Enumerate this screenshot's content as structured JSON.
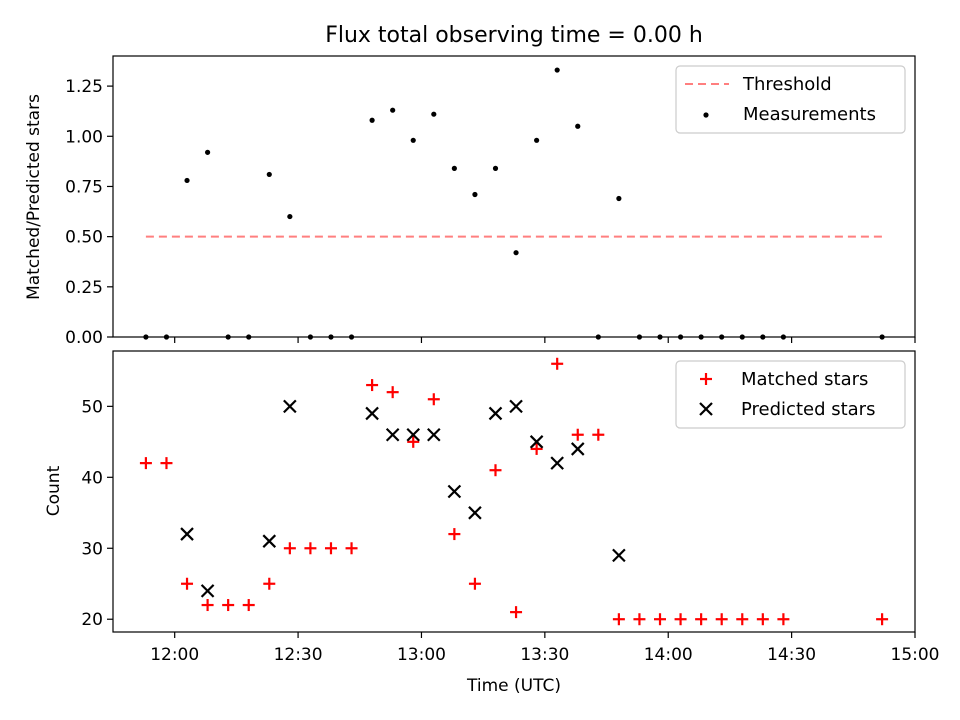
{
  "chart_data": [
    {
      "type": "scatter",
      "title": "Flux total observing time = 0.00 h",
      "xlabel": "",
      "ylabel": "Matched/Predicted stars",
      "x_axis": {
        "kind": "time",
        "range": [
          "11:45",
          "15:00"
        ],
        "ticks": [
          "12:00",
          "12:30",
          "13:00",
          "13:30",
          "14:00",
          "14:30",
          "15:00"
        ],
        "tick_labels_shown": false
      },
      "ylim": [
        0,
        1.4
      ],
      "yticks": [
        "0.00",
        "0.25",
        "0.50",
        "0.75",
        "1.00",
        "1.25"
      ],
      "legend": {
        "position": "top-right",
        "entries": [
          "Threshold",
          "Measurements"
        ]
      },
      "series": [
        {
          "name": "Threshold",
          "style": "dashed-line",
          "color": "#ff7f7f",
          "points": [
            [
              "11:53",
              0.5
            ],
            [
              "14:53",
              0.5
            ]
          ]
        },
        {
          "name": "Measurements",
          "style": "dot",
          "color": "#000000",
          "points": [
            [
              "11:53",
              0.0
            ],
            [
              "11:58",
              0.0
            ],
            [
              "12:03",
              0.78
            ],
            [
              "12:08",
              0.92
            ],
            [
              "12:13",
              0.0
            ],
            [
              "12:18",
              0.0
            ],
            [
              "12:23",
              0.81
            ],
            [
              "12:28",
              0.6
            ],
            [
              "12:33",
              0.0
            ],
            [
              "12:38",
              0.0
            ],
            [
              "12:43",
              0.0
            ],
            [
              "12:48",
              1.08
            ],
            [
              "12:53",
              1.13
            ],
            [
              "12:58",
              0.98
            ],
            [
              "13:03",
              1.11
            ],
            [
              "13:08",
              0.84
            ],
            [
              "13:13",
              0.71
            ],
            [
              "13:18",
              0.84
            ],
            [
              "13:23",
              0.42
            ],
            [
              "13:28",
              0.98
            ],
            [
              "13:33",
              1.33
            ],
            [
              "13:38",
              1.05
            ],
            [
              "13:43",
              0.0
            ],
            [
              "13:48",
              0.69
            ],
            [
              "13:53",
              0.0
            ],
            [
              "13:58",
              0.0
            ],
            [
              "14:03",
              0.0
            ],
            [
              "14:08",
              0.0
            ],
            [
              "14:13",
              0.0
            ],
            [
              "14:18",
              0.0
            ],
            [
              "14:23",
              0.0
            ],
            [
              "14:28",
              0.0
            ],
            [
              "14:52",
              0.0
            ]
          ]
        }
      ]
    },
    {
      "type": "scatter",
      "title": "",
      "xlabel": "Time (UTC)",
      "ylabel": "Count",
      "x_axis": {
        "kind": "time",
        "range": [
          "11:45",
          "15:00"
        ],
        "ticks": [
          "12:00",
          "12:30",
          "13:00",
          "13:30",
          "14:00",
          "14:30",
          "15:00"
        ],
        "tick_labels_shown": true
      },
      "ylim": [
        18.2,
        57.8
      ],
      "yticks": [
        "20",
        "30",
        "40",
        "50"
      ],
      "legend": {
        "position": "top-right",
        "entries": [
          "Matched stars",
          "Predicted stars"
        ]
      },
      "series": [
        {
          "name": "Matched stars",
          "marker": "plus",
          "color": "#ff0000",
          "points": [
            [
              "11:53",
              42
            ],
            [
              "11:58",
              42
            ],
            [
              "12:03",
              25
            ],
            [
              "12:08",
              22
            ],
            [
              "12:13",
              22
            ],
            [
              "12:18",
              22
            ],
            [
              "12:23",
              25
            ],
            [
              "12:28",
              30
            ],
            [
              "12:33",
              30
            ],
            [
              "12:38",
              30
            ],
            [
              "12:43",
              30
            ],
            [
              "12:48",
              53
            ],
            [
              "12:53",
              52
            ],
            [
              "12:58",
              45
            ],
            [
              "13:03",
              51
            ],
            [
              "13:08",
              32
            ],
            [
              "13:13",
              25
            ],
            [
              "13:18",
              41
            ],
            [
              "13:23",
              21
            ],
            [
              "13:28",
              44
            ],
            [
              "13:33",
              56
            ],
            [
              "13:38",
              46
            ],
            [
              "13:43",
              46
            ],
            [
              "13:48",
              20
            ],
            [
              "13:53",
              20
            ],
            [
              "13:58",
              20
            ],
            [
              "14:03",
              20
            ],
            [
              "14:08",
              20
            ],
            [
              "14:13",
              20
            ],
            [
              "14:18",
              20
            ],
            [
              "14:23",
              20
            ],
            [
              "14:28",
              20
            ],
            [
              "14:52",
              20
            ]
          ]
        },
        {
          "name": "Predicted stars",
          "marker": "x",
          "color": "#000000",
          "points": [
            [
              "12:03",
              32
            ],
            [
              "12:08",
              24
            ],
            [
              "12:23",
              31
            ],
            [
              "12:28",
              50
            ],
            [
              "12:48",
              49
            ],
            [
              "12:53",
              46
            ],
            [
              "12:58",
              46
            ],
            [
              "13:03",
              46
            ],
            [
              "13:08",
              38
            ],
            [
              "13:13",
              35
            ],
            [
              "13:18",
              49
            ],
            [
              "13:23",
              50
            ],
            [
              "13:28",
              45
            ],
            [
              "13:33",
              42
            ],
            [
              "13:38",
              44
            ],
            [
              "13:48",
              29
            ]
          ]
        }
      ]
    }
  ]
}
